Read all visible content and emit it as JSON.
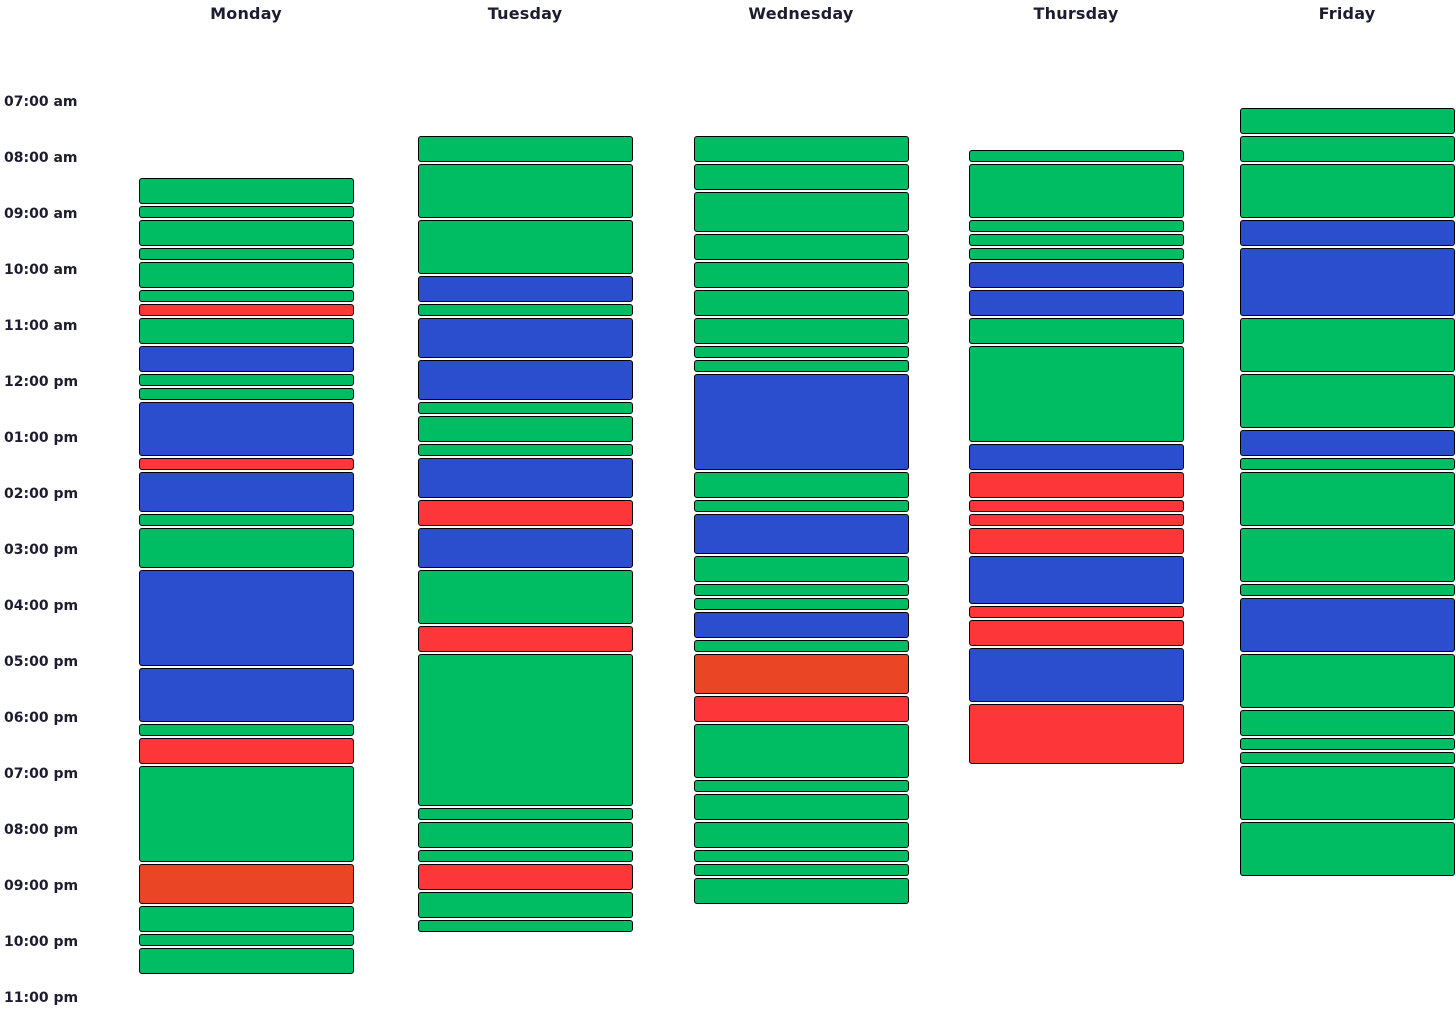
{
  "colors": {
    "green": "#00bc62",
    "blue": "#2b4ecf",
    "red": "#fd3639",
    "orange": "#ea4524"
  },
  "days": [
    {
      "label": "Monday",
      "blocks": [
        {
          "start": "08:20",
          "end": "08:50",
          "color": "green"
        },
        {
          "start": "08:50",
          "end": "09:05",
          "color": "green"
        },
        {
          "start": "09:05",
          "end": "09:35",
          "color": "green"
        },
        {
          "start": "09:35",
          "end": "09:50",
          "color": "green"
        },
        {
          "start": "09:50",
          "end": "10:20",
          "color": "green"
        },
        {
          "start": "10:20",
          "end": "10:35",
          "color": "green"
        },
        {
          "start": "10:35",
          "end": "10:50",
          "color": "red"
        },
        {
          "start": "10:50",
          "end": "11:20",
          "color": "green"
        },
        {
          "start": "11:20",
          "end": "11:50",
          "color": "blue"
        },
        {
          "start": "11:50",
          "end": "12:05",
          "color": "green"
        },
        {
          "start": "12:05",
          "end": "12:20",
          "color": "green"
        },
        {
          "start": "12:20",
          "end": "13:20",
          "color": "blue"
        },
        {
          "start": "13:20",
          "end": "13:35",
          "color": "red"
        },
        {
          "start": "13:35",
          "end": "14:20",
          "color": "blue"
        },
        {
          "start": "14:20",
          "end": "14:35",
          "color": "green"
        },
        {
          "start": "14:35",
          "end": "15:20",
          "color": "green"
        },
        {
          "start": "15:20",
          "end": "17:05",
          "color": "blue"
        },
        {
          "start": "17:05",
          "end": "18:05",
          "color": "blue"
        },
        {
          "start": "18:05",
          "end": "18:20",
          "color": "green"
        },
        {
          "start": "18:20",
          "end": "18:50",
          "color": "red"
        },
        {
          "start": "18:50",
          "end": "20:35",
          "color": "green"
        },
        {
          "start": "20:35",
          "end": "21:20",
          "color": "orange"
        },
        {
          "start": "21:20",
          "end": "21:50",
          "color": "green"
        },
        {
          "start": "21:50",
          "end": "22:05",
          "color": "green"
        },
        {
          "start": "22:05",
          "end": "22:35",
          "color": "green"
        }
      ]
    },
    {
      "label": "Tuesday",
      "blocks": [
        {
          "start": "07:35",
          "end": "08:05",
          "color": "green"
        },
        {
          "start": "08:05",
          "end": "09:05",
          "color": "green"
        },
        {
          "start": "09:05",
          "end": "10:05",
          "color": "green"
        },
        {
          "start": "10:05",
          "end": "10:35",
          "color": "blue"
        },
        {
          "start": "10:35",
          "end": "10:50",
          "color": "green"
        },
        {
          "start": "10:50",
          "end": "11:35",
          "color": "blue"
        },
        {
          "start": "11:35",
          "end": "12:20",
          "color": "blue"
        },
        {
          "start": "12:20",
          "end": "12:35",
          "color": "green"
        },
        {
          "start": "12:35",
          "end": "13:05",
          "color": "green"
        },
        {
          "start": "13:05",
          "end": "13:20",
          "color": "green"
        },
        {
          "start": "13:20",
          "end": "14:05",
          "color": "blue"
        },
        {
          "start": "14:05",
          "end": "14:35",
          "color": "red"
        },
        {
          "start": "14:35",
          "end": "15:20",
          "color": "blue"
        },
        {
          "start": "15:20",
          "end": "16:20",
          "color": "green"
        },
        {
          "start": "16:20",
          "end": "16:50",
          "color": "red"
        },
        {
          "start": "16:50",
          "end": "19:35",
          "color": "green"
        },
        {
          "start": "19:35",
          "end": "19:50",
          "color": "green"
        },
        {
          "start": "19:50",
          "end": "20:20",
          "color": "green"
        },
        {
          "start": "20:20",
          "end": "20:35",
          "color": "green"
        },
        {
          "start": "20:35",
          "end": "21:05",
          "color": "red"
        },
        {
          "start": "21:05",
          "end": "21:35",
          "color": "green"
        },
        {
          "start": "21:35",
          "end": "21:50",
          "color": "green"
        }
      ]
    },
    {
      "label": "Wednesday",
      "blocks": [
        {
          "start": "07:35",
          "end": "08:05",
          "color": "green"
        },
        {
          "start": "08:05",
          "end": "08:35",
          "color": "green"
        },
        {
          "start": "08:35",
          "end": "09:20",
          "color": "green"
        },
        {
          "start": "09:20",
          "end": "09:50",
          "color": "green"
        },
        {
          "start": "09:50",
          "end": "10:20",
          "color": "green"
        },
        {
          "start": "10:20",
          "end": "10:50",
          "color": "green"
        },
        {
          "start": "10:50",
          "end": "11:20",
          "color": "green"
        },
        {
          "start": "11:20",
          "end": "11:35",
          "color": "green"
        },
        {
          "start": "11:35",
          "end": "11:50",
          "color": "green"
        },
        {
          "start": "11:50",
          "end": "13:35",
          "color": "blue"
        },
        {
          "start": "13:35",
          "end": "14:05",
          "color": "green"
        },
        {
          "start": "14:05",
          "end": "14:20",
          "color": "green"
        },
        {
          "start": "14:20",
          "end": "15:05",
          "color": "blue"
        },
        {
          "start": "15:05",
          "end": "15:35",
          "color": "green"
        },
        {
          "start": "15:35",
          "end": "15:50",
          "color": "green"
        },
        {
          "start": "15:50",
          "end": "16:05",
          "color": "green"
        },
        {
          "start": "16:05",
          "end": "16:35",
          "color": "blue"
        },
        {
          "start": "16:35",
          "end": "16:50",
          "color": "green"
        },
        {
          "start": "16:50",
          "end": "17:35",
          "color": "orange"
        },
        {
          "start": "17:35",
          "end": "18:05",
          "color": "red"
        },
        {
          "start": "18:05",
          "end": "19:05",
          "color": "green"
        },
        {
          "start": "19:05",
          "end": "19:20",
          "color": "green"
        },
        {
          "start": "19:20",
          "end": "19:50",
          "color": "green"
        },
        {
          "start": "19:50",
          "end": "20:20",
          "color": "green"
        },
        {
          "start": "20:20",
          "end": "20:35",
          "color": "green"
        },
        {
          "start": "20:35",
          "end": "20:50",
          "color": "green"
        },
        {
          "start": "20:50",
          "end": "21:20",
          "color": "green"
        }
      ]
    },
    {
      "label": "Thursday",
      "blocks": [
        {
          "start": "07:50",
          "end": "08:05",
          "color": "green"
        },
        {
          "start": "08:05",
          "end": "09:05",
          "color": "green"
        },
        {
          "start": "09:05",
          "end": "09:20",
          "color": "green"
        },
        {
          "start": "09:20",
          "end": "09:35",
          "color": "green"
        },
        {
          "start": "09:35",
          "end": "09:50",
          "color": "green"
        },
        {
          "start": "09:50",
          "end": "10:20",
          "color": "blue"
        },
        {
          "start": "10:20",
          "end": "10:50",
          "color": "blue"
        },
        {
          "start": "10:50",
          "end": "11:20",
          "color": "green"
        },
        {
          "start": "11:20",
          "end": "13:05",
          "color": "green"
        },
        {
          "start": "13:05",
          "end": "13:35",
          "color": "blue"
        },
        {
          "start": "13:35",
          "end": "14:05",
          "color": "red"
        },
        {
          "start": "14:05",
          "end": "14:20",
          "color": "red"
        },
        {
          "start": "14:20",
          "end": "14:35",
          "color": "red"
        },
        {
          "start": "14:35",
          "end": "15:05",
          "color": "red"
        },
        {
          "start": "15:05",
          "end": "15:59",
          "color": "blue"
        },
        {
          "start": "15:59",
          "end": "16:14",
          "color": "red"
        },
        {
          "start": "16:14",
          "end": "16:44",
          "color": "red"
        },
        {
          "start": "16:44",
          "end": "17:44",
          "color": "blue"
        },
        {
          "start": "17:44",
          "end": "18:50",
          "color": "red"
        }
      ]
    },
    {
      "label": "Friday",
      "blocks": [
        {
          "start": "07:05",
          "end": "07:35",
          "color": "green"
        },
        {
          "start": "07:35",
          "end": "08:05",
          "color": "green"
        },
        {
          "start": "08:05",
          "end": "09:05",
          "color": "green"
        },
        {
          "start": "09:05",
          "end": "09:35",
          "color": "blue"
        },
        {
          "start": "09:35",
          "end": "10:50",
          "color": "blue"
        },
        {
          "start": "10:50",
          "end": "11:50",
          "color": "green"
        },
        {
          "start": "11:50",
          "end": "12:50",
          "color": "green"
        },
        {
          "start": "12:50",
          "end": "13:20",
          "color": "blue"
        },
        {
          "start": "13:20",
          "end": "13:35",
          "color": "green"
        },
        {
          "start": "13:35",
          "end": "14:35",
          "color": "green"
        },
        {
          "start": "14:35",
          "end": "15:35",
          "color": "green"
        },
        {
          "start": "15:35",
          "end": "15:50",
          "color": "green"
        },
        {
          "start": "15:50",
          "end": "16:50",
          "color": "blue"
        },
        {
          "start": "16:50",
          "end": "17:50",
          "color": "green"
        },
        {
          "start": "17:50",
          "end": "18:20",
          "color": "green"
        },
        {
          "start": "18:20",
          "end": "18:35",
          "color": "green"
        },
        {
          "start": "18:35",
          "end": "18:50",
          "color": "green"
        },
        {
          "start": "18:50",
          "end": "19:50",
          "color": "green"
        },
        {
          "start": "19:50",
          "end": "20:50",
          "color": "green"
        }
      ]
    }
  ],
  "time_labels": [
    "07:00 am",
    "08:00 am",
    "09:00 am",
    "10:00 am",
    "11:00 am",
    "12:00 pm",
    "01:00 pm",
    "02:00 pm",
    "03:00 pm",
    "04:00 pm",
    "05:00 pm",
    "06:00 pm",
    "07:00 pm",
    "08:00 pm",
    "09:00 pm",
    "10:00 pm",
    "11:00 pm"
  ]
}
